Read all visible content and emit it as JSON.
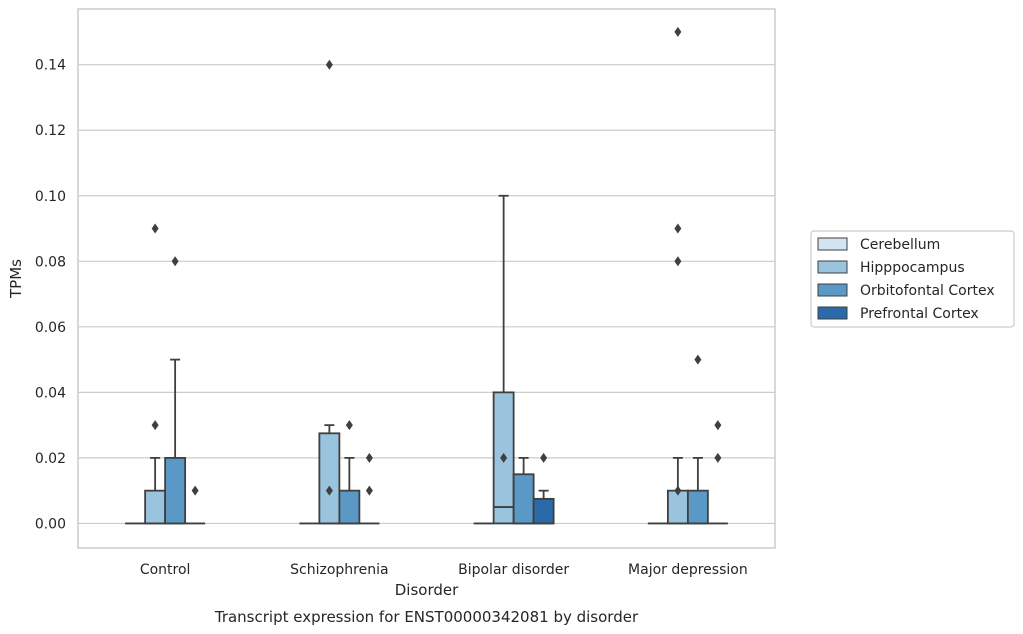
{
  "chart_data": {
    "type": "box",
    "title": "",
    "caption": "Transcript expression for ENST00000342081 by disorder",
    "xlabel": "Disorder",
    "ylabel": "TPMs",
    "ylim": [
      -0.0075,
      0.157
    ],
    "yticks": [
      "0.00",
      "0.02",
      "0.04",
      "0.06",
      "0.08",
      "0.10",
      "0.12",
      "0.14"
    ],
    "grid": "horizontal",
    "legend_position": "right",
    "categories": [
      "Control",
      "Schizophrenia",
      "Bipolar disorder",
      "Major depression"
    ],
    "series": [
      {
        "name": "Cerebellum",
        "color": "#d3e4f3",
        "boxes": [
          {
            "q1": 0,
            "median": 0,
            "q3": 0,
            "whisker_low": 0,
            "whisker_high": 0,
            "outliers": []
          },
          {
            "q1": 0,
            "median": 0,
            "q3": 0,
            "whisker_low": 0,
            "whisker_high": 0,
            "outliers": []
          },
          {
            "q1": 0,
            "median": 0,
            "q3": 0,
            "whisker_low": 0,
            "whisker_high": 0,
            "outliers": []
          },
          {
            "q1": 0,
            "median": 0,
            "q3": 0,
            "whisker_low": 0,
            "whisker_high": 0,
            "outliers": []
          }
        ]
      },
      {
        "name": "Hipppocampus",
        "color": "#9ac4de",
        "boxes": [
          {
            "q1": 0,
            "median": 0,
            "q3": 0.01,
            "whisker_low": 0,
            "whisker_high": 0.02,
            "outliers": [
              0.03,
              0.09
            ]
          },
          {
            "q1": 0,
            "median": 0,
            "q3": 0.0275,
            "whisker_low": 0,
            "whisker_high": 0.03,
            "outliers": [
              0.01,
              0.14
            ]
          },
          {
            "q1": 0,
            "median": 0.005,
            "q3": 0.04,
            "whisker_low": 0,
            "whisker_high": 0.1,
            "outliers": [
              0.02
            ]
          },
          {
            "q1": 0,
            "median": 0,
            "q3": 0.01,
            "whisker_low": 0,
            "whisker_high": 0.02,
            "outliers": [
              0.01,
              0.08,
              0.09,
              0.15
            ]
          }
        ]
      },
      {
        "name": "Orbitofontal Cortex",
        "color": "#5a98c5",
        "boxes": [
          {
            "q1": 0,
            "median": 0,
            "q3": 0.02,
            "whisker_low": 0,
            "whisker_high": 0.05,
            "outliers": [
              0.08
            ]
          },
          {
            "q1": 0,
            "median": 0,
            "q3": 0.01,
            "whisker_low": 0,
            "whisker_high": 0.02,
            "outliers": [
              0.03
            ]
          },
          {
            "q1": 0,
            "median": 0,
            "q3": 0.015,
            "whisker_low": 0,
            "whisker_high": 0.02,
            "outliers": []
          },
          {
            "q1": 0,
            "median": 0,
            "q3": 0.01,
            "whisker_low": 0,
            "whisker_high": 0.02,
            "outliers": [
              0.05
            ]
          }
        ]
      },
      {
        "name": "Prefrontal Cortex",
        "color": "#2a6aa8",
        "boxes": [
          {
            "q1": 0,
            "median": 0,
            "q3": 0,
            "whisker_low": 0,
            "whisker_high": 0,
            "outliers": [
              0.01
            ]
          },
          {
            "q1": 0,
            "median": 0,
            "q3": 0,
            "whisker_low": 0,
            "whisker_high": 0,
            "outliers": [
              0.01,
              0.02
            ]
          },
          {
            "q1": 0,
            "median": 0,
            "q3": 0.0075,
            "whisker_low": 0,
            "whisker_high": 0.01,
            "outliers": [
              0.02
            ]
          },
          {
            "q1": 0,
            "median": 0,
            "q3": 0,
            "whisker_low": 0,
            "whisker_high": 0,
            "outliers": [
              0.02,
              0.03
            ]
          }
        ]
      }
    ],
    "colors": {
      "grid": "#cccccc",
      "frame": "#cccccc",
      "line": "#3f3f3f",
      "text": "#262626"
    }
  }
}
